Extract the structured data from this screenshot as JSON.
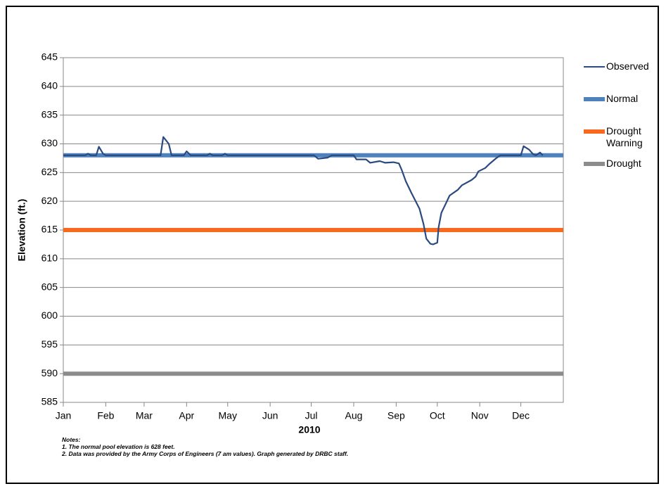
{
  "chart_data": {
    "type": "line",
    "xlabel": "2010",
    "ylabel": "Elevation (ft.)",
    "xlim": [
      0,
      365
    ],
    "xticks": [
      {
        "value": 0,
        "label": "Jan"
      },
      {
        "value": 31,
        "label": "Feb"
      },
      {
        "value": 59,
        "label": "Mar"
      },
      {
        "value": 90,
        "label": "Apr"
      },
      {
        "value": 120,
        "label": "May"
      },
      {
        "value": 151,
        "label": "Jun"
      },
      {
        "value": 181,
        "label": "Jul"
      },
      {
        "value": 212,
        "label": "Aug"
      },
      {
        "value": 243,
        "label": "Sep"
      },
      {
        "value": 273,
        "label": "Oct"
      },
      {
        "value": 304,
        "label": "Nov"
      },
      {
        "value": 334,
        "label": "Dec"
      }
    ],
    "ylim": [
      585,
      645
    ],
    "yticks": [
      585,
      590,
      595,
      600,
      605,
      610,
      615,
      620,
      625,
      630,
      635,
      640,
      645
    ],
    "grid": true,
    "legend": "right",
    "series": [
      {
        "name": "Observed",
        "color": "#2b4a80",
        "width": 2.2,
        "x": [
          0,
          16,
          18,
          20,
          24,
          26,
          29,
          31,
          71,
          73,
          77,
          79,
          88,
          90,
          93,
          105,
          107,
          109,
          116,
          118,
          120,
          183,
          186,
          193,
          196,
          212,
          214,
          221,
          224,
          231,
          235,
          241,
          245,
          247,
          250,
          254,
          260,
          263,
          265,
          268,
          270,
          273,
          274,
          276,
          279,
          282,
          288,
          291,
          298,
          301,
          303,
          308,
          311,
          316,
          319,
          334,
          336,
          340,
          343,
          345,
          348,
          350
        ],
        "values": [
          628,
          628,
          628.3,
          628,
          628,
          629.5,
          628.3,
          628,
          628,
          631.2,
          630,
          628,
          628,
          628.7,
          628,
          628,
          628.3,
          628,
          628,
          628.3,
          628,
          628,
          627.4,
          627.6,
          628,
          628,
          627.3,
          627.3,
          626.7,
          627,
          626.7,
          626.8,
          626.6,
          625.5,
          623.5,
          621.5,
          618.7,
          616,
          613.5,
          612.6,
          612.5,
          612.8,
          615.5,
          618,
          619.5,
          621,
          622,
          622.8,
          623.7,
          624.3,
          625.2,
          625.8,
          626.5,
          627.5,
          628,
          628,
          629.6,
          629,
          628.2,
          628,
          628.5,
          628
        ]
      },
      {
        "name": "Normal",
        "color": "#4f81bd",
        "width": 6,
        "x": [
          0,
          365
        ],
        "values": [
          628,
          628
        ]
      },
      {
        "name": "Drought Warning",
        "color": "#f7691e",
        "width": 6,
        "x": [
          0,
          365
        ],
        "values": [
          615,
          615
        ]
      },
      {
        "name": "Drought",
        "color": "#8c8c8c",
        "width": 6,
        "x": [
          0,
          365
        ],
        "values": [
          590,
          590
        ]
      }
    ]
  },
  "notes": {
    "heading": "Notes:",
    "lines": [
      "1. The normal pool elevation is 628 feet.",
      "2. Data was provided by the Army Corps of Engineers (7 am values). Graph generated by DRBC staff."
    ]
  }
}
